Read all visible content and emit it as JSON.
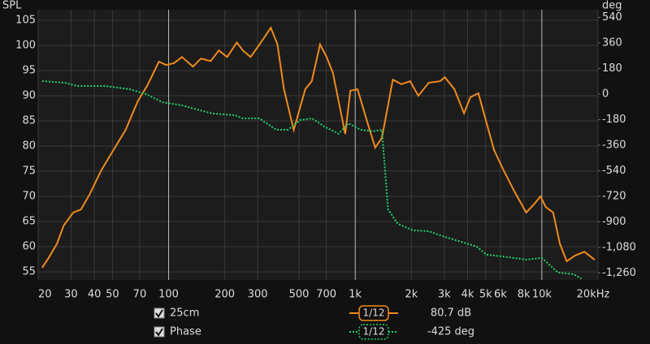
{
  "chart_data": {
    "type": "line",
    "background": "#111111",
    "y_label": "SPL",
    "y2_label": "deg",
    "xscale": "log",
    "grid": true,
    "xlim": [
      20,
      20000
    ],
    "xticks": [
      20,
      30,
      40,
      50,
      70,
      100,
      200,
      300,
      500,
      700,
      {
        "value": 1000,
        "label": "1k"
      },
      {
        "value": 2000,
        "label": "2k"
      },
      {
        "value": 3000,
        "label": "3k"
      },
      {
        "value": 4000,
        "label": "4k"
      },
      {
        "value": 5000,
        "label": "5k"
      },
      {
        "value": 6000,
        "label": "6k"
      },
      {
        "value": 8000,
        "label": "8k"
      },
      {
        "value": 10000,
        "label": "10k"
      },
      {
        "value": 20000,
        "label": "20kHz"
      }
    ],
    "ylim": [
      53.4,
      107.1
    ],
    "yticks": [
      55,
      60,
      65,
      70,
      75,
      80,
      85,
      90,
      95,
      100,
      105
    ],
    "y2lim": [
      -1309,
      594
    ],
    "y2ticks": [
      540,
      360,
      180,
      0,
      -180,
      -360,
      -540,
      -720,
      -900,
      {
        "value": -1080,
        "label": "-1,080"
      },
      {
        "value": -1260,
        "label": "-1,260"
      }
    ],
    "series": [
      {
        "name": "25cm",
        "color": "#f08a1c",
        "dash": "none",
        "smoothing": "1/12",
        "readout": "80.7 dB",
        "x": [
          21,
          22.7,
          25.2,
          27.4,
          30.8,
          33.9,
          37.6,
          43.6,
          50.6,
          58.8,
          68.3,
          77,
          88.7,
          97,
          107,
          118,
          135,
          149,
          168,
          186,
          206,
          232,
          250,
          275,
          307,
          353,
          383,
          415,
          468,
          540,
          585,
          648,
          703,
          760,
          884,
          942,
          1030,
          1160,
          1280,
          1390,
          1590,
          1770,
          1970,
          2180,
          2480,
          2850,
          3020,
          3400,
          3830,
          4140,
          4570,
          5040,
          5550,
          6240,
          7100,
          8240,
          9070,
          9830,
          10500,
          11500,
          12500,
          13600,
          15000,
          16900,
          19200
        ],
        "values": [
          55.8,
          57.7,
          60.6,
          64.2,
          66.8,
          67.4,
          70.3,
          75.2,
          79.2,
          83.2,
          88.9,
          92.1,
          96.8,
          96.1,
          96.5,
          97.7,
          95.8,
          97.4,
          96.9,
          99,
          97.7,
          100.6,
          99,
          97.7,
          100.2,
          103.5,
          100.2,
          91.3,
          83.2,
          91.3,
          92.9,
          100.2,
          97.7,
          94.5,
          82.4,
          91,
          91.3,
          84.8,
          79.7,
          81.6,
          93.2,
          92.3,
          92.9,
          90,
          92.6,
          92.9,
          93.7,
          91.3,
          86.5,
          89.7,
          90.5,
          84.8,
          79.2,
          75.2,
          71.1,
          66.8,
          68.4,
          70,
          67.9,
          66.8,
          60.6,
          57.1,
          58.2,
          59,
          57.4
        ]
      },
      {
        "name": "Phase",
        "color": "#22d36a",
        "dash": "dotted",
        "axis": "y2",
        "smoothing": "1/12",
        "readout": "-425 deg",
        "x": [
          21,
          27.8,
          32.3,
          45.8,
          62,
          75.6,
          92.4,
          118,
          136.6,
          172,
          227,
          250,
          307,
          377,
          437,
          506,
          588,
          683,
          815,
          919,
          1070,
          1240,
          1390,
          1500,
          1690,
          2040,
          2480,
          3020,
          3680,
          4470,
          5040,
          6120,
          8240,
          10000,
          12200,
          14800,
          16300
        ],
        "values": [
          91,
          80,
          57,
          57,
          34,
          0,
          -57,
          -80,
          -103,
          -137,
          -149,
          -171,
          -171,
          -251,
          -251,
          -183,
          -171,
          -229,
          -280,
          -206,
          -251,
          -263,
          -251,
          -811,
          -914,
          -960,
          -966,
          -1006,
          -1040,
          -1074,
          -1131,
          -1143,
          -1166,
          -1154,
          -1257,
          -1269,
          -1300
        ]
      }
    ]
  }
}
